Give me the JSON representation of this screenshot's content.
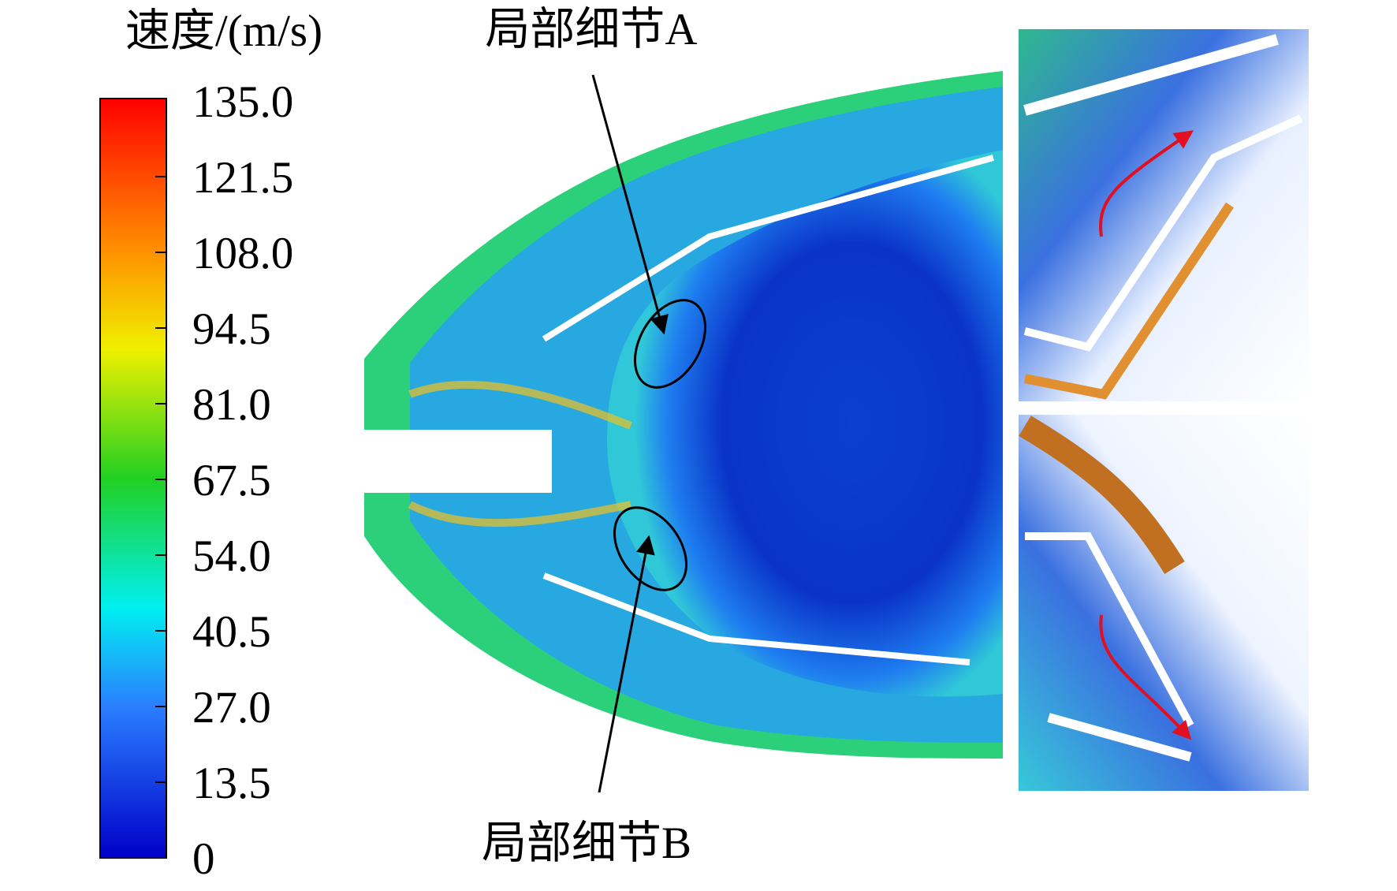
{
  "colorbar": {
    "title": "速度/(m/s)",
    "ticks": [
      "135.0",
      "121.5",
      "108.0",
      "94.5",
      "81.0",
      "67.5",
      "54.0",
      "40.5",
      "27.0",
      "13.5",
      "0"
    ]
  },
  "annotations": {
    "detail_a": "局部细节A",
    "detail_b": "局部细节B"
  }
}
